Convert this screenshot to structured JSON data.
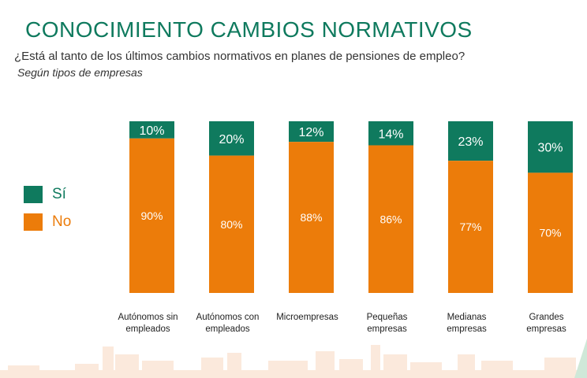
{
  "title": "CONOCIMIENTO CAMBIOS NORMATIVOS",
  "subtitle": "¿Está al tanto de los últimos cambios normativos en planes de pensiones de empleo?",
  "subtitle2": "Según tipos de empresas",
  "colors": {
    "si": "#0f7a5e",
    "no": "#ec7c0a",
    "skyline": "#fbe9dc"
  },
  "legend": [
    {
      "label": "Sí",
      "color": "#0f7a5e"
    },
    {
      "label": "No",
      "color": "#ec7c0a"
    }
  ],
  "chart_data": {
    "type": "bar",
    "stacked": true,
    "percent": true,
    "categories": [
      [
        "Autónomos sin",
        "empleados"
      ],
      [
        "Autónomos con",
        "empleados"
      ],
      [
        "Microempresas"
      ],
      [
        "Pequeñas",
        "empresas"
      ],
      [
        "Medianas",
        "empresas"
      ],
      [
        "Grandes",
        "empresas"
      ]
    ],
    "series": [
      {
        "name": "No",
        "values": [
          90,
          80,
          88,
          86,
          77,
          70
        ],
        "labels": [
          "90%",
          "80%",
          "88%",
          "86%",
          "77%",
          "70%"
        ]
      },
      {
        "name": "Sí",
        "values": [
          10,
          20,
          12,
          14,
          23,
          30
        ],
        "labels": [
          "10%",
          "20%",
          "12%",
          "14%",
          "23%",
          "30%"
        ]
      }
    ],
    "ylim": [
      0,
      100
    ],
    "legend_position": "left"
  }
}
